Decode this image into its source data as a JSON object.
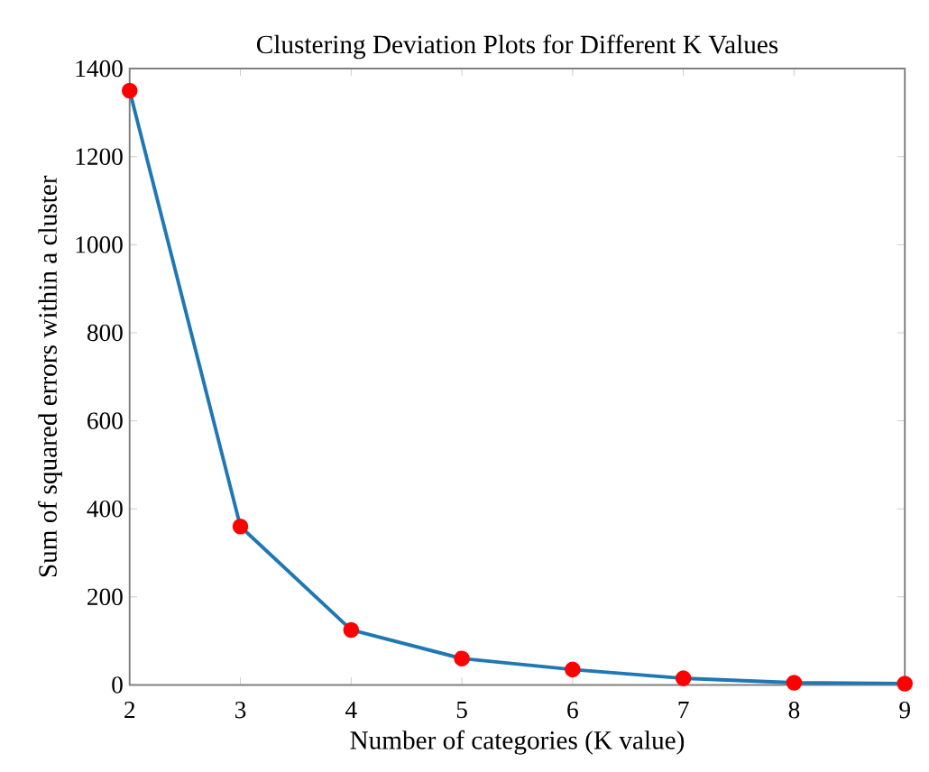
{
  "chart_data": {
    "type": "line",
    "title": "Clustering Deviation Plots for Different K Values",
    "xlabel": "Number of categories (K value)",
    "ylabel": "Sum of squared errors within a cluster",
    "x": [
      2,
      3,
      4,
      5,
      6,
      7,
      8,
      9
    ],
    "series": [
      {
        "color": "#1f77b4",
        "colors": [
          "#ff0000",
          "#ff0000",
          "#ff0000",
          "#ff0000",
          "#ff0000",
          "#ff0000",
          "#ff0000",
          "#ff0000"
        ],
        "values": [
          1350,
          360,
          125,
          60,
          35,
          15,
          5,
          3
        ]
      }
    ],
    "xlim": [
      2,
      9
    ],
    "xticks": [
      2,
      3,
      4,
      5,
      6,
      7,
      8,
      9
    ],
    "ylim": [
      0,
      1400
    ],
    "yticks": [
      0,
      200,
      400,
      600,
      800,
      1000,
      1200,
      1400
    ],
    "marker": "circle",
    "line_style": "solid",
    "grid": false
  }
}
